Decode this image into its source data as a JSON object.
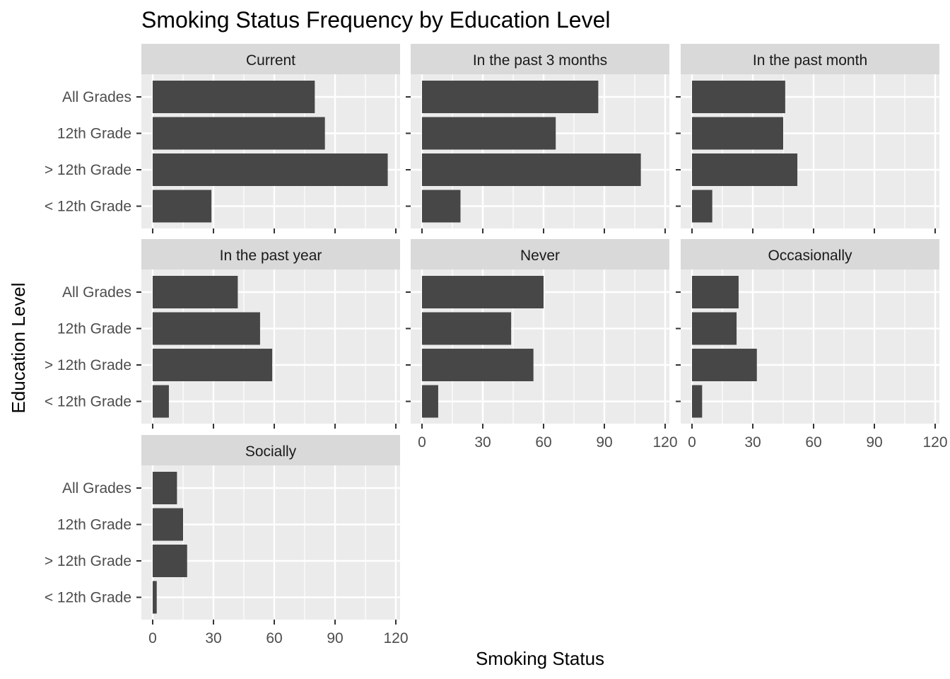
{
  "chart_data": {
    "type": "bar",
    "orientation": "horizontal",
    "title": "Smoking Status Frequency by Education Level",
    "xlabel": "Smoking Status",
    "ylabel": "Education Level",
    "xlim": [
      0,
      120
    ],
    "x_ticks": [
      0,
      30,
      60,
      90,
      120
    ],
    "grid": true,
    "categories": [
      "All Grades",
      "12th Grade",
      "> 12th Grade",
      "< 12th Grade"
    ],
    "facets": [
      {
        "name": "Current",
        "values": [
          80,
          85,
          116,
          29
        ]
      },
      {
        "name": "In the past 3 months",
        "values": [
          87,
          66,
          108,
          19
        ]
      },
      {
        "name": "In the past month",
        "values": [
          46,
          45,
          52,
          10
        ]
      },
      {
        "name": "In the past year",
        "values": [
          42,
          53,
          59,
          8
        ]
      },
      {
        "name": "Never",
        "values": [
          60,
          44,
          55,
          8
        ]
      },
      {
        "name": "Occasionally",
        "values": [
          23,
          22,
          32,
          5
        ]
      },
      {
        "name": "Socially",
        "values": [
          12,
          15,
          17,
          2
        ]
      }
    ],
    "colors": {
      "bar": "#474747",
      "panel": "#ebebeb",
      "strip": "#d9d9d9",
      "grid": "#ffffff"
    }
  }
}
